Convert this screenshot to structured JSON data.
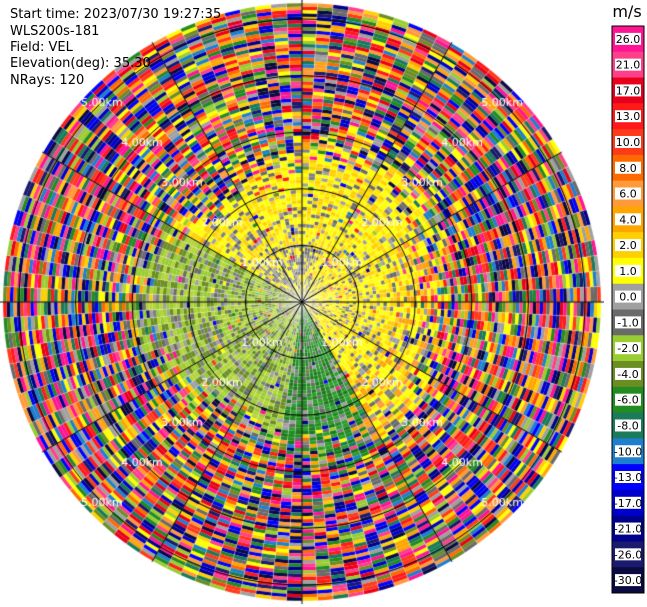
{
  "header": {
    "start_time": "Start time: 2023/07/30 19:27:35",
    "instrument": "WLS200s-181",
    "field": "Field: VEL",
    "elevation": "Elevation(deg): 35.30",
    "nrays": "NRays: 120"
  },
  "chart_data": {
    "type": "heatmap",
    "subtype": "polar-ppi",
    "field": "VEL",
    "units": "m/s",
    "nrays": 120,
    "range_rings_km": [
      1.0,
      2.0,
      3.0,
      4.0,
      5.0
    ],
    "range_ring_labels": [
      "1.00km",
      "2.00km",
      "3.00km",
      "4.00km",
      "5.00km"
    ],
    "max_range_km": 5.3,
    "colorbar_ticks": [
      "26.0",
      "21.0",
      "17.0",
      "13.0",
      "10.0",
      "8.0",
      "6.0",
      "4.0",
      "2.0",
      "1.0",
      "0.0",
      "-1.0",
      "-2.0",
      "-4.0",
      "-6.0",
      "-8.0",
      "-10.0",
      "-13.0",
      "-17.0",
      "-21.0",
      "-26.0",
      "-30.0"
    ],
    "colorbar_colors": [
      "#ff1493",
      "#ff3f8a",
      "#e8001a",
      "#ff1a1a",
      "#ff3a1a",
      "#ff6a00",
      "#ff9a3a",
      "#ffa500",
      "#ffd000",
      "#ffff00",
      "#a0a0a0",
      "#6a6a6a",
      "#9acd32",
      "#6b8e23",
      "#228b22",
      "#1a7a5a",
      "#1e7fcf",
      "#0000ff",
      "#0000cd",
      "#00008b",
      "#1a1a6e",
      "#0a0a40"
    ],
    "pattern_description_inner": "near field: yellow to the north and east (positive), olive/green to the southwest (negative), gray clutter interspersed",
    "pattern_description_outer": "beyond 2.5 km: random multicolor noise across all bins"
  },
  "colors": {
    "ring": "#000000",
    "background": "#ffffff"
  }
}
